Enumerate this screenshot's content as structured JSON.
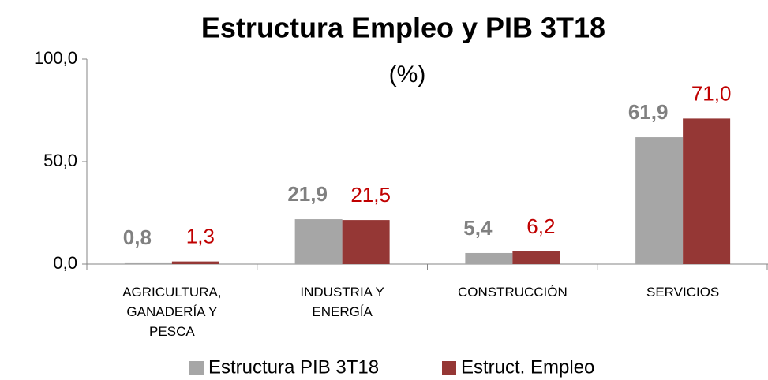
{
  "chart_data": {
    "type": "bar",
    "title": "Estructura  Empleo y PIB 3T18",
    "subtitle": "(%)",
    "categories": [
      "AGRICULTURA, GANADERÍA Y PESCA",
      "INDUSTRIA Y ENERGÍA",
      "CONSTRUCCIÓN",
      "SERVICIOS"
    ],
    "series": [
      {
        "name": "Estructura PIB 3T18",
        "color": "#a6a6a6",
        "label_color": "#808080",
        "values": [
          0.8,
          21.9,
          5.4,
          61.9
        ],
        "value_labels": [
          "0,8",
          "21,9",
          "5,4",
          "61,9"
        ]
      },
      {
        "name": "Estruct. Empleo",
        "color": "#953735",
        "label_color": "#c00000",
        "values": [
          1.3,
          21.5,
          6.2,
          71.0
        ],
        "value_labels": [
          "1,3",
          "21,5",
          "6,2",
          "71,0"
        ]
      }
    ],
    "ylim": [
      0,
      100
    ],
    "yticks": [
      {
        "value": 0,
        "label": "0,0"
      },
      {
        "value": 50,
        "label": "50,0"
      },
      {
        "value": 100,
        "label": "100,0"
      }
    ],
    "legend": "bottom"
  }
}
